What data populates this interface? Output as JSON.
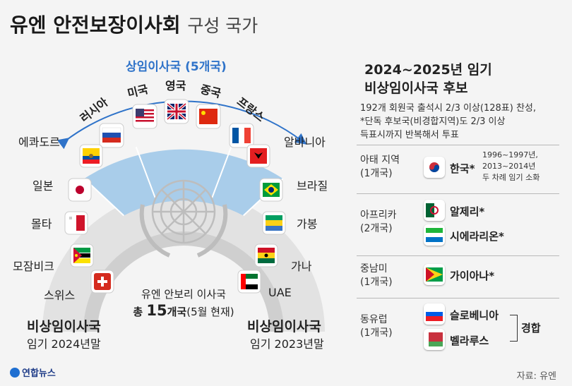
{
  "title": {
    "main": "유엔 안전보장이사회",
    "sub": "구성 국가"
  },
  "permanent": {
    "label": "상임이사국 (5개국)",
    "countries": [
      "러시아",
      "미국",
      "영국",
      "중국",
      "프랑스"
    ]
  },
  "left_nonperm": {
    "countries": [
      "에콰도르",
      "일본",
      "몰타",
      "모잠비크",
      "스위스"
    ],
    "heading": "비상임이사국",
    "term": "임기 2024년말"
  },
  "right_nonperm": {
    "countries": [
      "알바니아",
      "브라질",
      "가봉",
      "가나",
      "UAE"
    ],
    "heading": "비상임이사국",
    "term": "임기 2023년말"
  },
  "center": {
    "line1": "유엔 안보리 이사국",
    "line2a": "총 ",
    "line2b": "15",
    "line2c": "개국",
    "line2d": "(5월 현재)"
  },
  "candidates": {
    "title1": "2024~2025년 임기",
    "title2": "비상임이사국 후보",
    "note1": "192개 회원국 출석시 2/3 이상(128표) 찬성,",
    "note2": "*단독 후보국(비경합지역)도 2/3 이상",
    "note3": "득표시까지 반복해서 투표",
    "regions": [
      {
        "name": "아태 지역",
        "count": "(1개국)"
      },
      {
        "name": "아프리카",
        "count": "(2개국)"
      },
      {
        "name": "중남미",
        "count": "(1개국)"
      },
      {
        "name": "동유럽",
        "count": "(1개국)"
      }
    ],
    "korea": "한국*",
    "korea_note1": "1996~1997년,",
    "korea_note2": "2013~2014년",
    "korea_note3": "두 차례 임기 소화",
    "algeria": "알제리*",
    "sierra": "시에라리온*",
    "guyana": "가이아나*",
    "slovenia": "슬로베니아",
    "belarus": "벨라루스",
    "contest": "경합"
  },
  "footer": {
    "logo": "연합뉴스",
    "source": "자료: 유엔"
  },
  "colors": {
    "permanent_band": "#a9cdea",
    "outer_ring": "#e2e2e2",
    "inner_ring": "#cfcfcf",
    "arrow": "#2f73c9"
  }
}
